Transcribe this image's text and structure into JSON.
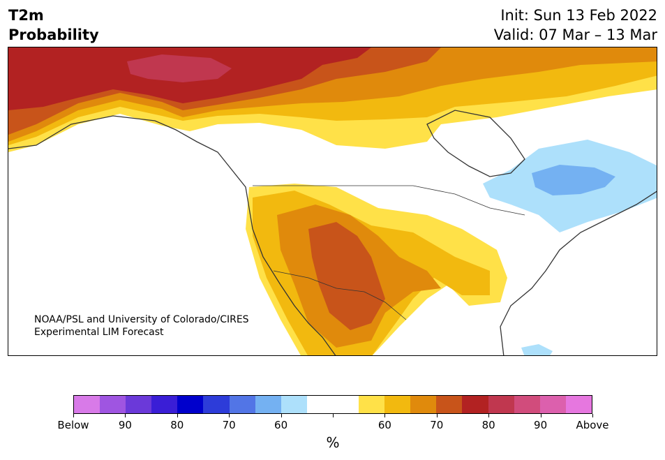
{
  "title": {
    "line1": "T2m",
    "line2": "Probability"
  },
  "forecast": {
    "init": "Init: Sun 13 Feb 2022",
    "valid": "Valid: 07 Mar – 13 Mar"
  },
  "credit": {
    "line1": "NOAA/PSL and University of Colorado/CIRES",
    "line2": "Experimental LIM Forecast"
  },
  "colorbar": {
    "unit": "%",
    "labels": [
      "Below",
      "90",
      "80",
      "70",
      "60",
      "60",
      "70",
      "80",
      "90",
      "Above"
    ],
    "colors": [
      "#d87ae8",
      "#9f55e1",
      "#6b39d9",
      "#3a1ed6",
      "#0000cc",
      "#2d3cd9",
      "#5275e6",
      "#74b1f2",
      "#ade0fb",
      "#ffffff",
      "#ffffff",
      "#ffe148",
      "#f2b90f",
      "#e08a0c",
      "#c8541a",
      "#b22222",
      "#c0374f",
      "#d14c7c",
      "#dc60ad",
      "#e677df"
    ]
  },
  "legend_colors": {
    "warm_60": "#ffe148",
    "warm_65": "#f2b90f",
    "warm_70": "#e08a0c",
    "warm_75": "#c8541a",
    "warm_80": "#b22222",
    "warm_85": "#c0374f",
    "cool_60": "#ade0fb",
    "cool_65": "#74b1f2",
    "land_outline": "#333333"
  }
}
